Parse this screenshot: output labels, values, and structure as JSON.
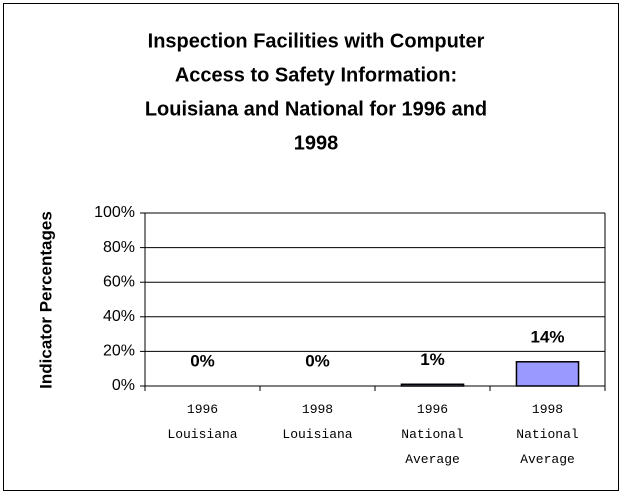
{
  "chart_data": {
    "type": "bar",
    "title": [
      "Inspection Facilities with Computer",
      "Access to Safety Information:",
      "Louisiana and National for 1996 and",
      "1998"
    ],
    "ylabel": "Indicator Percentages",
    "categories": [
      "1996 Louisiana",
      "1998 Louisiana",
      "1996 National Average",
      "1998 National Average"
    ],
    "values": [
      0,
      0,
      1,
      14
    ],
    "value_labels": [
      "0%",
      "0%",
      "1%",
      "14%"
    ],
    "color": "#9999ff",
    "ylim": [
      0,
      100
    ],
    "yticks": [
      {
        "value": 0,
        "label": "0%"
      },
      {
        "value": 20,
        "label": "20%"
      },
      {
        "value": 40,
        "label": "40%"
      },
      {
        "value": 60,
        "label": "60%"
      },
      {
        "value": 80,
        "label": "80%"
      },
      {
        "value": 100,
        "label": "100%"
      }
    ],
    "grid": true
  }
}
